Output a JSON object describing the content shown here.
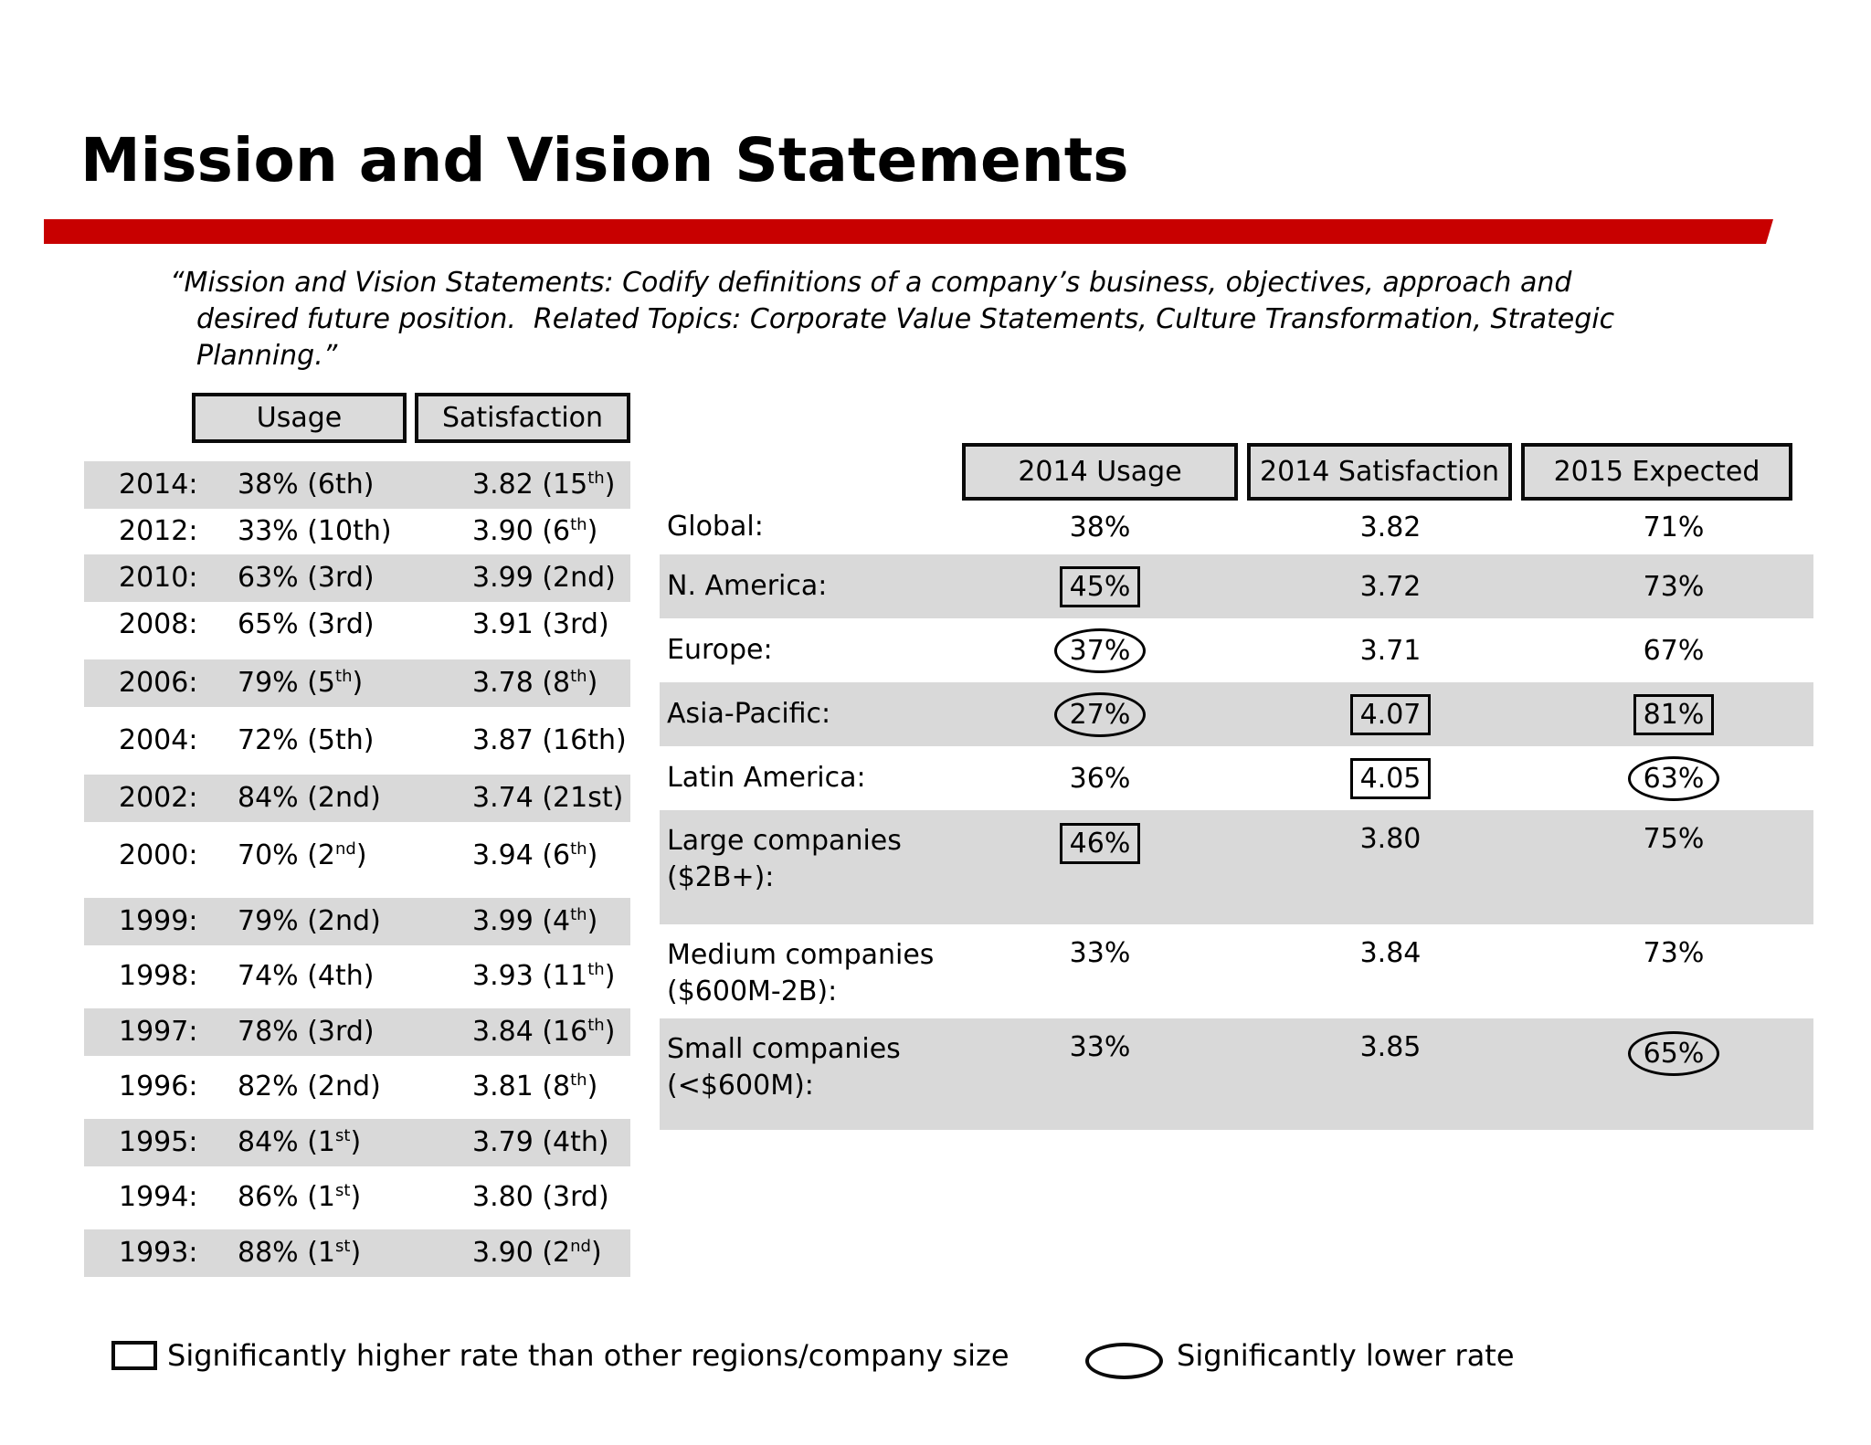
{
  "title": "Mission and Vision Statements",
  "quote_lines": [
    "“Mission and Vision Statements: Codify definitions of a company’s business, objectives, approach and",
    "desired future position.  Related Topics: Corporate Value Statements, Culture Transformation, Strategic",
    "Planning.”"
  ],
  "history_table": {
    "headers": {
      "usage": "Usage",
      "satisfaction": "Satisfaction"
    },
    "rows": [
      {
        "year": "2014:",
        "usage": "38% (6th)",
        "satisfaction": "3.82 (15{th})"
      },
      {
        "year": "2012:",
        "usage": "33% (10th)",
        "satisfaction": "3.90 (6{th})"
      },
      {
        "year": "2010:",
        "usage": "63% (3rd)",
        "satisfaction": "3.99 (2nd)"
      },
      {
        "year": "2008:",
        "usage": "65% (3rd)",
        "satisfaction": "3.91 (3rd)"
      },
      {
        "year": "2006:",
        "usage": "79% (5{th})",
        "satisfaction": "3.78 (8{th})"
      },
      {
        "year": "2004:",
        "usage": "72% (5th)",
        "satisfaction": "3.87 (16th)"
      },
      {
        "year": "2002:",
        "usage": "84% (2nd)",
        "satisfaction": "3.74 (21st)"
      },
      {
        "year": "2000:",
        "usage": "70% (2{nd})",
        "satisfaction": "3.94 (6{th})"
      },
      {
        "year": "1999:",
        "usage": "79% (2nd)",
        "satisfaction": "3.99 (4{th})"
      },
      {
        "year": "1998:",
        "usage": "74% (4th)",
        "satisfaction": "3.93 (11{th})"
      },
      {
        "year": "1997:",
        "usage": "78% (3rd)",
        "satisfaction": "3.84 (16{th})"
      },
      {
        "year": "1996:",
        "usage": "82% (2nd)",
        "satisfaction": "3.81 (8{th})"
      },
      {
        "year": "1995:",
        "usage": "84% (1{st})",
        "satisfaction": "3.79 (4th)"
      },
      {
        "year": "1994:",
        "usage": "86% (1{st})",
        "satisfaction": "3.80 (3rd)"
      },
      {
        "year": "1993:",
        "usage": "88% (1{st})",
        "satisfaction": "3.90 (2{nd})"
      }
    ]
  },
  "regional_table": {
    "headers": [
      "2014 Usage",
      "2014 Satisfaction",
      "2015 Expected"
    ],
    "rows": [
      {
        "label_lines": [
          "Global:"
        ],
        "usage": "38%",
        "usage_mark": "none",
        "satisfaction": "3.82",
        "satisfaction_mark": "none",
        "expected": "71%",
        "expected_mark": "none"
      },
      {
        "label_lines": [
          "N. America:"
        ],
        "usage": "45%",
        "usage_mark": "box",
        "satisfaction": "3.72",
        "satisfaction_mark": "none",
        "expected": "73%",
        "expected_mark": "none"
      },
      {
        "label_lines": [
          "Europe:"
        ],
        "usage": "37%",
        "usage_mark": "ellipse",
        "satisfaction": "3.71",
        "satisfaction_mark": "none",
        "expected": "67%",
        "expected_mark": "none"
      },
      {
        "label_lines": [
          "Asia-Pacific:"
        ],
        "usage": "27%",
        "usage_mark": "ellipse",
        "satisfaction": "4.07",
        "satisfaction_mark": "box",
        "expected": "81%",
        "expected_mark": "box"
      },
      {
        "label_lines": [
          "Latin America:"
        ],
        "usage": "36%",
        "usage_mark": "none",
        "satisfaction": "4.05",
        "satisfaction_mark": "box",
        "expected": "63%",
        "expected_mark": "ellipse"
      },
      {
        "label_lines": [
          "Large companies",
          "($2B+):"
        ],
        "usage": "46%",
        "usage_mark": "box",
        "satisfaction": "3.80",
        "satisfaction_mark": "none",
        "expected": "75%",
        "expected_mark": "none"
      },
      {
        "label_lines": [
          "Medium companies",
          "($600M-2B):"
        ],
        "usage": "33%",
        "usage_mark": "none",
        "satisfaction": "3.84",
        "satisfaction_mark": "none",
        "expected": "73%",
        "expected_mark": "none"
      },
      {
        "label_lines": [
          "Small companies",
          "(<$600M):"
        ],
        "usage": "33%",
        "usage_mark": "none",
        "satisfaction": "3.85",
        "satisfaction_mark": "none",
        "expected": "65%",
        "expected_mark": "ellipse"
      }
    ]
  },
  "legend": {
    "higher_label": "Significantly higher rate than other regions/company size",
    "lower_label": "Significantly lower rate"
  },
  "colors": {
    "accent_red": "#C80000",
    "row_shade": "#D9D9D9",
    "header_fill": "#DBDBDB",
    "border_black": "#0A0A0A"
  }
}
